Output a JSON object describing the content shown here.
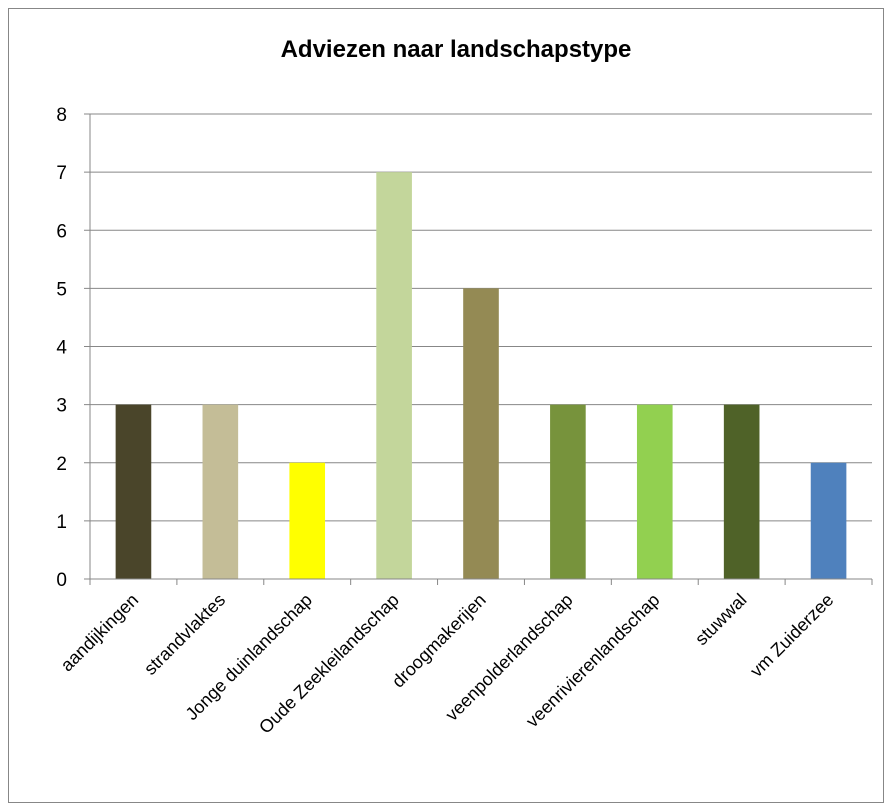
{
  "chart_data": {
    "type": "bar",
    "title": "Adviezen naar landschapstype",
    "xlabel": "",
    "ylabel": "",
    "ylim": [
      0,
      8
    ],
    "yticks": [
      0,
      1,
      2,
      3,
      4,
      5,
      6,
      7,
      8
    ],
    "grid": true,
    "legend": "none",
    "categories": [
      "aandijkingen",
      "strandvlaktes",
      "Jonge duinlandschap",
      "Oude Zeekleilandschap",
      "droogmakerijen",
      "veenpolderlandschap",
      "veenrivierenlandschap",
      "stuwwal",
      "vm Zuiderzee"
    ],
    "values": [
      3,
      3,
      2,
      7,
      5,
      3,
      3,
      3,
      2
    ],
    "colors": [
      "#4a452a",
      "#c4bd97",
      "#ffff00",
      "#c3d69b",
      "#948a54",
      "#77933c",
      "#92d050",
      "#4f6228",
      "#4f81bd"
    ]
  }
}
